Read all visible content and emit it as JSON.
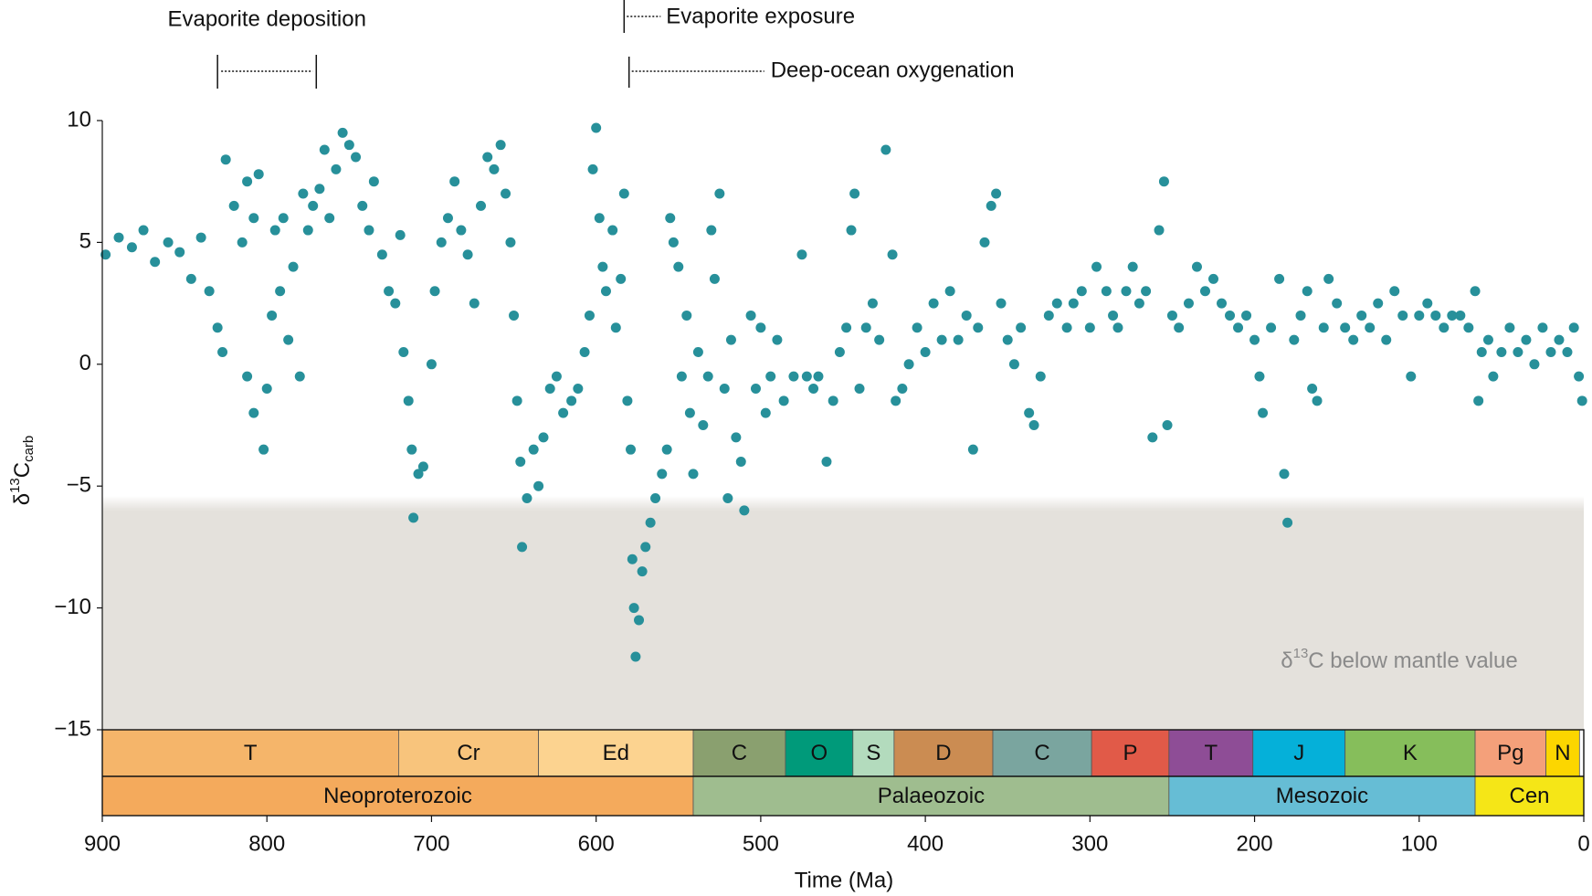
{
  "chart_data": {
    "type": "scatter",
    "color": "#27909a",
    "x_label": "Time (Ma)",
    "y_label": {
      "prefix": "δ",
      "sup": "13",
      "main": "C",
      "sub": "carb"
    },
    "xlim": [
      900,
      0
    ],
    "ylim": [
      -15,
      10
    ],
    "xticks": [
      900,
      800,
      700,
      600,
      500,
      400,
      300,
      200,
      100,
      0
    ],
    "yticks": [
      {
        "value": -15,
        "label": "−15"
      },
      {
        "value": -10,
        "label": "−10"
      },
      {
        "value": -5,
        "label": "−5"
      },
      0,
      5,
      10
    ],
    "mantle_value": -6,
    "shade_label": {
      "prefix": "δ",
      "sup": "13",
      "main": "C below mantle value"
    },
    "annotations": [
      {
        "text": "Evaporite deposition",
        "start": 830,
        "end": 770
      },
      {
        "text": "Evaporite exposure",
        "start": 583
      },
      {
        "text": "Deep-ocean oxygenation",
        "start": 580
      }
    ],
    "periods": [
      {
        "name": "T",
        "start": 900,
        "end": 720,
        "color": "#f5b56a"
      },
      {
        "name": "Cr",
        "start": 720,
        "end": 635,
        "color": "#f8c47c"
      },
      {
        "name": "Ed",
        "start": 635,
        "end": 541,
        "color": "#fcd390"
      },
      {
        "name": "C",
        "start": 541,
        "end": 485,
        "color": "#8aa06f"
      },
      {
        "name": "O",
        "start": 485,
        "end": 444,
        "color": "#009a7a"
      },
      {
        "name": "S",
        "start": 444,
        "end": 419,
        "color": "#b3dbbd"
      },
      {
        "name": "D",
        "start": 419,
        "end": 359,
        "color": "#cb8c52"
      },
      {
        "name": "C",
        "start": 359,
        "end": 299,
        "color": "#7aa59f"
      },
      {
        "name": "P",
        "start": 299,
        "end": 252,
        "color": "#e15a48"
      },
      {
        "name": "T",
        "start": 252,
        "end": 201,
        "color": "#8e4d96"
      },
      {
        "name": "J",
        "start": 201,
        "end": 145,
        "color": "#05b0d9"
      },
      {
        "name": "K",
        "start": 145,
        "end": 66,
        "color": "#86be5b"
      },
      {
        "name": "Pg",
        "start": 66,
        "end": 23,
        "color": "#f4a07a"
      },
      {
        "name": "N",
        "start": 23,
        "end": 2.6,
        "color": "#fcd600"
      }
    ],
    "eras": [
      {
        "name": "Neoproterozoic",
        "start": 900,
        "end": 541,
        "color": "#f4aa5c"
      },
      {
        "name": "Palaeozoic",
        "start": 541,
        "end": 252,
        "color": "#9fbd8f"
      },
      {
        "name": "Mesozoic",
        "start": 252,
        "end": 66,
        "color": "#66bdd5"
      },
      {
        "name": "Cen",
        "start": 66,
        "end": 0,
        "color": "#f5e617"
      }
    ],
    "x": [
      898,
      890,
      882,
      875,
      868,
      860,
      853,
      846,
      840,
      835,
      830,
      827,
      825,
      820,
      815,
      812,
      808,
      805,
      812,
      808,
      802,
      800,
      797,
      795,
      792,
      790,
      787,
      784,
      780,
      778,
      775,
      772,
      768,
      765,
      762,
      758,
      754,
      750,
      746,
      742,
      738,
      735,
      730,
      726,
      722,
      719,
      717,
      714,
      712,
      711,
      708,
      705,
      700,
      698,
      694,
      690,
      686,
      682,
      678,
      674,
      670,
      666,
      662,
      658,
      655,
      652,
      650,
      648,
      646,
      645,
      642,
      638,
      635,
      632,
      628,
      624,
      620,
      615,
      611,
      607,
      604,
      602,
      600,
      598,
      596,
      594,
      590,
      588,
      585,
      583,
      581,
      579,
      578,
      577,
      576,
      574,
      572,
      570,
      567,
      564,
      560,
      557,
      555,
      553,
      550,
      548,
      545,
      543,
      541,
      538,
      535,
      532,
      530,
      528,
      525,
      522,
      520,
      518,
      515,
      512,
      510,
      506,
      503,
      500,
      497,
      494,
      490,
      486,
      480,
      475,
      472,
      468,
      465,
      460,
      456,
      452,
      448,
      445,
      443,
      440,
      436,
      432,
      428,
      424,
      420,
      418,
      414,
      410,
      405,
      400,
      395,
      390,
      385,
      380,
      375,
      371,
      368,
      364,
      360,
      357,
      354,
      350,
      346,
      342,
      337,
      334,
      330,
      325,
      320,
      314,
      310,
      305,
      300,
      296,
      290,
      286,
      283,
      278,
      274,
      270,
      266,
      262,
      258,
      255,
      253,
      250,
      246,
      240,
      235,
      230,
      225,
      220,
      215,
      210,
      205,
      200,
      197,
      195,
      190,
      185,
      182,
      180,
      176,
      172,
      168,
      165,
      162,
      158,
      155,
      150,
      145,
      140,
      135,
      130,
      125,
      120,
      115,
      110,
      105,
      100,
      95,
      90,
      85,
      80,
      75,
      70,
      66,
      64,
      62,
      58,
      55,
      50,
      45,
      40,
      35,
      30,
      25,
      20,
      15,
      10,
      6,
      3,
      1
    ],
    "values": [
      4.5,
      5.2,
      4.8,
      5.5,
      4.2,
      5,
      4.6,
      3.5,
      5.2,
      3,
      1.5,
      0.5,
      8.4,
      6.5,
      5,
      7.5,
      6,
      7.8,
      -0.5,
      -2,
      -3.5,
      -1,
      2,
      5.5,
      3,
      6,
      1,
      4,
      -0.5,
      7,
      5.5,
      6.5,
      7.2,
      8.8,
      6,
      8,
      9.5,
      9,
      8.5,
      6.5,
      5.5,
      7.5,
      4.5,
      3,
      2.5,
      5.3,
      0.5,
      -1.5,
      -3.5,
      -6.3,
      -4.5,
      -4.2,
      0,
      3,
      5,
      6,
      7.5,
      5.5,
      4.5,
      2.5,
      6.5,
      8.5,
      8,
      9,
      7,
      5,
      2,
      -1.5,
      -4,
      -7.5,
      -5.5,
      -3.5,
      -5,
      -3,
      -1,
      -0.5,
      -2,
      -1.5,
      -1,
      0.5,
      2,
      8,
      9.7,
      6,
      4,
      3,
      5.5,
      1.5,
      3.5,
      7,
      -1.5,
      -3.5,
      -8,
      -10,
      -12,
      -10.5,
      -8.5,
      -7.5,
      -6.5,
      -5.5,
      -4.5,
      -3.5,
      6,
      5,
      4,
      -0.5,
      2,
      -2,
      -4.5,
      0.5,
      -2.5,
      -0.5,
      5.5,
      3.5,
      7,
      -1,
      -5.5,
      1,
      -3,
      -4,
      -6,
      2,
      -1,
      1.5,
      -2,
      -0.5,
      1,
      -1.5,
      -0.5,
      4.5,
      -0.5,
      -1,
      -0.5,
      -4,
      -1.5,
      0.5,
      1.5,
      5.5,
      7,
      -1,
      1.5,
      2.5,
      1,
      8.8,
      4.5,
      -1.5,
      -1,
      0,
      1.5,
      0.5,
      2.5,
      1,
      3,
      1,
      2,
      -3.5,
      1.5,
      5,
      6.5,
      7,
      2.5,
      1,
      0,
      1.5,
      -2,
      -2.5,
      -0.5,
      2,
      2.5,
      1.5,
      2.5,
      3,
      1.5,
      4,
      3,
      2,
      1.5,
      3,
      4,
      2.5,
      3,
      -3,
      5.5,
      7.5,
      -2.5,
      2,
      1.5,
      2.5,
      4,
      3,
      3.5,
      2.5,
      2,
      1.5,
      2,
      1,
      -0.5,
      -2,
      1.5,
      3.5,
      -4.5,
      -6.5,
      1,
      2,
      3,
      -1,
      -1.5,
      1.5,
      3.5,
      2.5,
      1.5,
      1,
      2,
      1.5,
      2.5,
      1,
      3,
      2,
      -0.5,
      2,
      2.5,
      2,
      1.5,
      2,
      2,
      1.5,
      3,
      -1.5,
      0.5,
      1,
      -0.5,
      0.5,
      1.5,
      0.5,
      1,
      0,
      1.5,
      0.5,
      1,
      0.5,
      1.5,
      -0.5,
      -1.5
    ]
  }
}
